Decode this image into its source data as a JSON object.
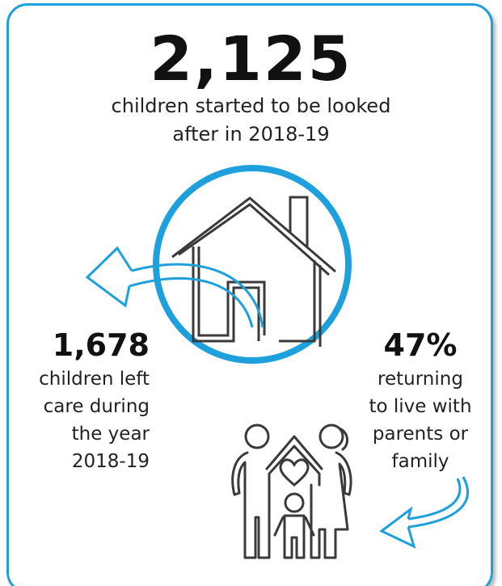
{
  "headline": {
    "number": "2,125",
    "caption_lines": [
      "children started to be looked",
      "after in 2018-19"
    ]
  },
  "left_stat": {
    "number": "1,678",
    "caption_lines": [
      "children left",
      "care during",
      "the year",
      "2018-19"
    ]
  },
  "right_stat": {
    "number": "47%",
    "caption_lines": [
      "returning",
      "to live with",
      "parents or",
      "family"
    ]
  },
  "colors": {
    "accent": "#1ea0dc",
    "icon_stroke": "#3a3a3a",
    "text": "#222222"
  },
  "icons": [
    "house-icon",
    "family-icon",
    "heart-icon",
    "curved-arrow-left-icon",
    "curved-arrow-down-icon"
  ]
}
